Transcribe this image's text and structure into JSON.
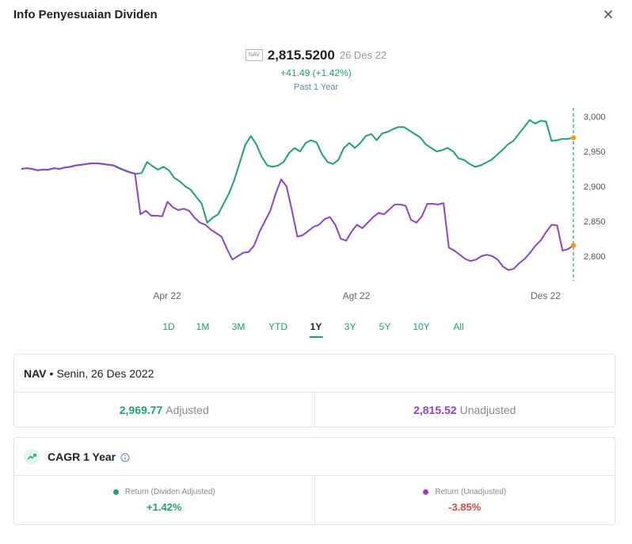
{
  "dialog": {
    "title": "Info Penyesuaian Dividen",
    "close_icon": "close-icon"
  },
  "nav_header": {
    "tag": "NAV",
    "value": "2,815.5200",
    "date": "26 Des 22",
    "change": "+41.49 (+1.42%)",
    "period": "Past 1 Year"
  },
  "colors": {
    "green": "#1da46e",
    "purple": "#8e44c9",
    "orange": "#f39c12",
    "red": "#e04848"
  },
  "chart_data": {
    "type": "line",
    "x_tick_labels": [
      "Apr 22",
      "Agt 22",
      "Des 22"
    ],
    "y_tick_labels": [
      "3,000",
      "2,950",
      "2,900",
      "2,850",
      "2,800"
    ],
    "ylim": [
      2770,
      3010
    ],
    "grid": false,
    "series": [
      {
        "key": "adjusted",
        "color": "#1da46e",
        "values": [
          2925,
          2926,
          2925,
          2923,
          2924,
          2924,
          2926,
          2925,
          2927,
          2928,
          2930,
          2931,
          2932,
          2933,
          2933,
          2932,
          2931,
          2930,
          2926,
          2923,
          2920,
          2918,
          2919,
          2935,
          2929,
          2924,
          2928,
          2923,
          2912,
          2907,
          2900,
          2895,
          2885,
          2875,
          2848,
          2855,
          2860,
          2875,
          2890,
          2910,
          2935,
          2960,
          2972,
          2960,
          2942,
          2930,
          2928,
          2930,
          2935,
          2948,
          2955,
          2950,
          2962,
          2966,
          2963,
          2946,
          2935,
          2932,
          2938,
          2955,
          2962,
          2955,
          2962,
          2972,
          2975,
          2966,
          2976,
          2978,
          2982,
          2985,
          2985,
          2980,
          2975,
          2970,
          2960,
          2955,
          2950,
          2952,
          2955,
          2950,
          2940,
          2938,
          2932,
          2928,
          2930,
          2934,
          2938,
          2945,
          2952,
          2960,
          2965,
          2975,
          2985,
          2995,
          2990,
          2994,
          2993,
          2965,
          2966,
          2968,
          2968,
          2969.77
        ]
      },
      {
        "key": "unadjusted",
        "color": "#8e44c9",
        "values": [
          2925,
          2926,
          2925,
          2923,
          2924,
          2924,
          2926,
          2925,
          2927,
          2928,
          2930,
          2931,
          2932,
          2933,
          2933,
          2932,
          2931,
          2930,
          2926,
          2923,
          2920,
          2918,
          2860,
          2865,
          2858,
          2858,
          2857,
          2878,
          2870,
          2866,
          2868,
          2865,
          2855,
          2848,
          2845,
          2838,
          2833,
          2828,
          2810,
          2795,
          2800,
          2805,
          2806,
          2815,
          2835,
          2850,
          2865,
          2890,
          2910,
          2900,
          2865,
          2828,
          2830,
          2836,
          2842,
          2845,
          2853,
          2856,
          2845,
          2825,
          2822,
          2835,
          2845,
          2840,
          2848,
          2856,
          2862,
          2860,
          2867,
          2874,
          2874,
          2872,
          2852,
          2848,
          2857,
          2875,
          2875,
          2874,
          2876,
          2812,
          2808,
          2802,
          2796,
          2793,
          2795,
          2800,
          2802,
          2800,
          2795,
          2785,
          2780,
          2782,
          2790,
          2796,
          2805,
          2815,
          2823,
          2835,
          2845,
          2844,
          2808,
          2810,
          2815.52
        ]
      }
    ]
  },
  "periods": [
    "1D",
    "1M",
    "3M",
    "YTD",
    "1Y",
    "3Y",
    "5Y",
    "10Y",
    "All"
  ],
  "active_period": "1Y",
  "nav_card": {
    "label": "NAV",
    "separator": "•",
    "date": "Senin, 26 Des 2022",
    "adjusted_value": "2,969.77",
    "adjusted_label": "Adjusted",
    "unadjusted_value": "2,815.52",
    "unadjusted_label": "Unadjusted"
  },
  "cagr_card": {
    "title": "CAGR 1 Year",
    "icon": "trending-up-icon",
    "info_icon": "info-icon",
    "adjusted_label": "Return (Dividen Adjusted)",
    "adjusted_value": "+1.42%",
    "unadjusted_label": "Return (Unadjusted)",
    "unadjusted_value": "-3.85%"
  }
}
